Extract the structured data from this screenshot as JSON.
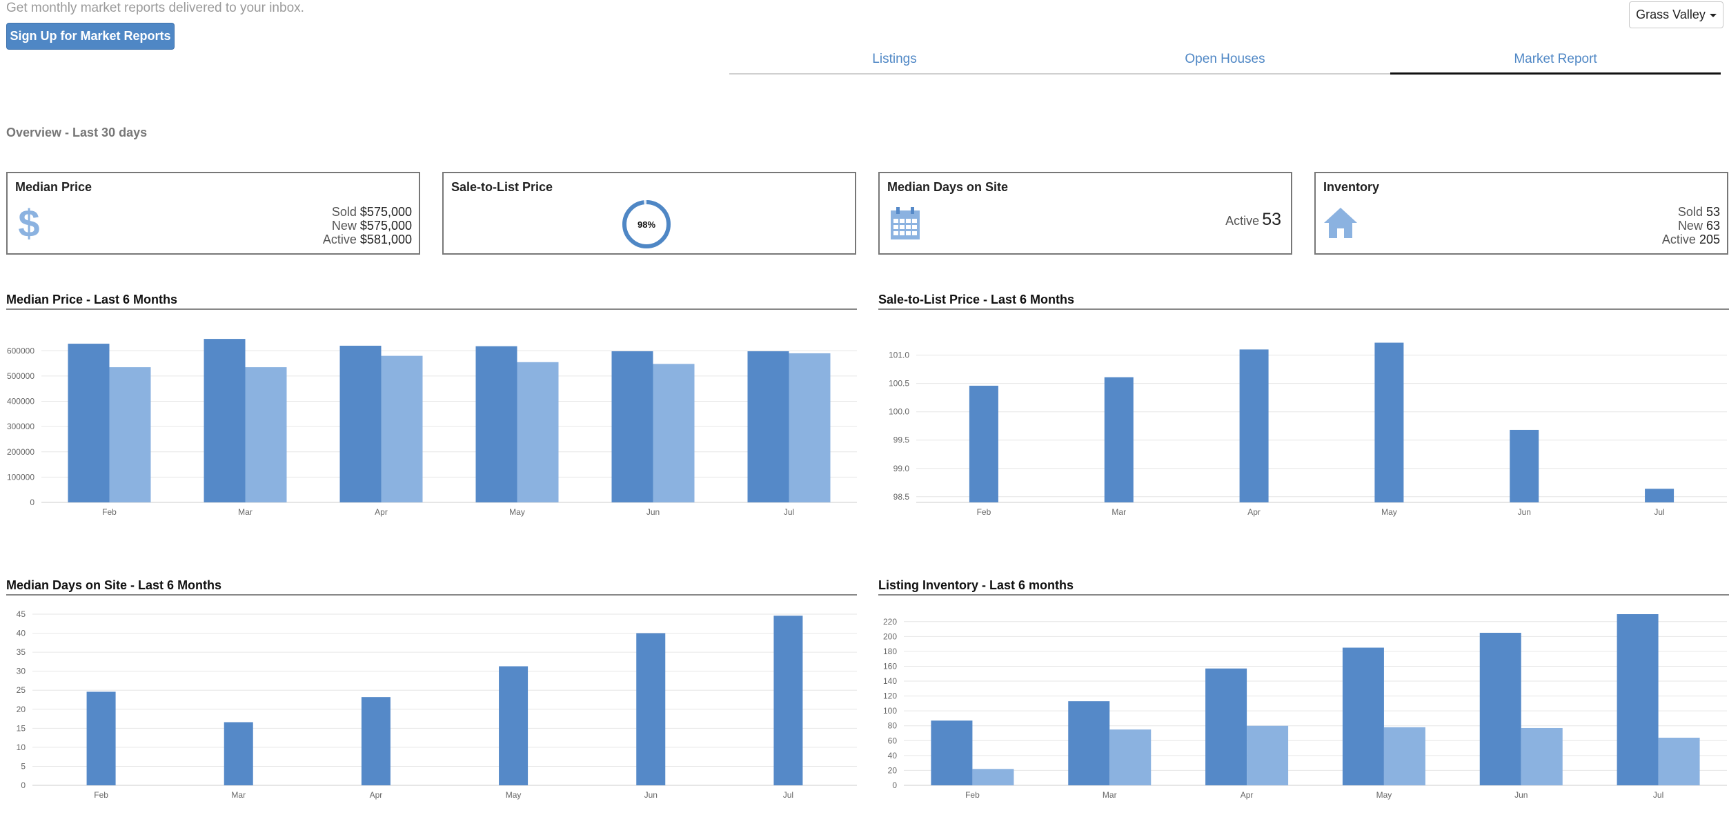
{
  "header": {
    "signup_text": "Get monthly market reports delivered to your inbox.",
    "signup_button": "Sign Up for Market Reports",
    "region": "Grass Valley"
  },
  "tabs": [
    {
      "label": "Listings",
      "active": false
    },
    {
      "label": "Open Houses",
      "active": false
    },
    {
      "label": "Market Report",
      "active": true
    }
  ],
  "overview_title": "Overview - Last 30 days",
  "cards": {
    "median_price": {
      "title": "Median Price",
      "icon": "dollar-icon",
      "rows": [
        {
          "label": "Sold",
          "value": "$575,000"
        },
        {
          "label": "New",
          "value": "$575,000"
        },
        {
          "label": "Active",
          "value": "$581,000"
        }
      ]
    },
    "sale_to_list": {
      "title": "Sale-to-List Price",
      "value": "98%",
      "percent": 98
    },
    "median_days": {
      "title": "Median Days on Site",
      "icon": "calendar-icon",
      "label": "Active",
      "value": "53"
    },
    "inventory": {
      "title": "Inventory",
      "icon": "house-icon",
      "rows": [
        {
          "label": "Sold",
          "value": "53"
        },
        {
          "label": "New",
          "value": "63"
        },
        {
          "label": "Active",
          "value": "205"
        }
      ]
    }
  },
  "colors": {
    "primary": "#5589c8",
    "secondary": "#8bb2e0",
    "accent": "#4f87c5"
  },
  "chart_data": [
    {
      "id": "median-price",
      "title": "Median Price - Last 6 Months",
      "type": "bar",
      "categories": [
        "Feb",
        "Mar",
        "Apr",
        "May",
        "Jun",
        "Jul"
      ],
      "series": [
        {
          "values": [
            628000,
            647000,
            620000,
            618000,
            598000,
            598000
          ]
        },
        {
          "values": [
            535000,
            535000,
            580000,
            555000,
            548000,
            590000
          ]
        }
      ],
      "ylim": [
        0,
        650000
      ],
      "yticks": [
        0,
        100000,
        200000,
        300000,
        400000,
        500000,
        600000
      ]
    },
    {
      "id": "sale-to-list",
      "title": "Sale-to-List Price - Last 6 Months",
      "type": "bar",
      "categories": [
        "Feb",
        "Mar",
        "Apr",
        "May",
        "Jun",
        "Jul"
      ],
      "series": [
        {
          "values": [
            100.46,
            100.61,
            101.1,
            101.22,
            99.68,
            98.64
          ]
        }
      ],
      "ylim": [
        98.4,
        101.3
      ],
      "yticks": [
        "98.5",
        "99.0",
        "99.5",
        "100.0",
        "100.5",
        "101.0"
      ]
    },
    {
      "id": "median-days",
      "title": "Median Days on Site - Last 6 Months",
      "type": "bar",
      "categories": [
        "Feb",
        "Mar",
        "Apr",
        "May",
        "Jun",
        "Jul"
      ],
      "series": [
        {
          "values": [
            24.6,
            16.6,
            23.2,
            31.3,
            40,
            44.6
          ]
        }
      ],
      "ylim": [
        0,
        45
      ],
      "yticks": [
        0,
        5,
        10,
        15,
        20,
        25,
        30,
        35,
        40,
        45
      ]
    },
    {
      "id": "listing-inventory",
      "title": "Listing Inventory - Last 6 months",
      "type": "bar",
      "categories": [
        "Feb",
        "Mar",
        "Apr",
        "May",
        "Jun",
        "Jul"
      ],
      "series": [
        {
          "values": [
            87,
            113,
            157,
            185,
            205,
            230
          ]
        },
        {
          "values": [
            22,
            75,
            80,
            78,
            77,
            64
          ]
        }
      ],
      "ylim": [
        0,
        230
      ],
      "yticks": [
        0,
        20,
        40,
        60,
        80,
        100,
        120,
        140,
        160,
        180,
        200,
        220
      ]
    }
  ]
}
